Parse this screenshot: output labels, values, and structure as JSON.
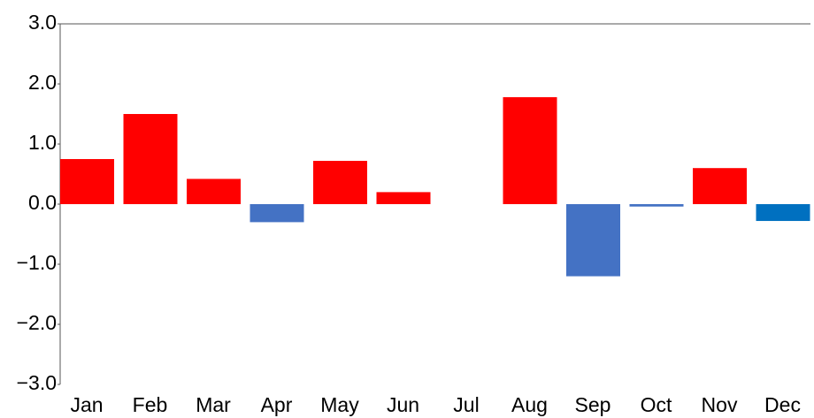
{
  "chart_data": {
    "type": "bar",
    "categories": [
      "Jan",
      "Feb",
      "Mar",
      "Apr",
      "May",
      "Jun",
      "Jul",
      "Aug",
      "Sep",
      "Oct",
      "Nov",
      "Dec"
    ],
    "values": [
      0.75,
      1.5,
      0.42,
      -0.3,
      0.72,
      0.2,
      null,
      1.78,
      -1.2,
      -0.04,
      0.6,
      -0.28
    ],
    "colors": [
      "#ff0000",
      "#ff0000",
      "#ff0000",
      "#4472c4",
      "#ff0000",
      "#ff0000",
      "#ff0000",
      "#ff0000",
      "#4472c4",
      "#4472c4",
      "#ff0000",
      "#0070c0"
    ],
    "ylim": [
      -3,
      3
    ],
    "yticks": [
      {
        "value": 3,
        "label": "3.0"
      },
      {
        "value": 2,
        "label": "2.0"
      },
      {
        "value": 1,
        "label": "1.0"
      },
      {
        "value": 0,
        "label": "0.0"
      },
      {
        "value": -1,
        "label": "−1.0"
      },
      {
        "value": -2,
        "label": "−2.0"
      },
      {
        "value": -3,
        "label": "−3.0"
      }
    ],
    "grid": false
  }
}
